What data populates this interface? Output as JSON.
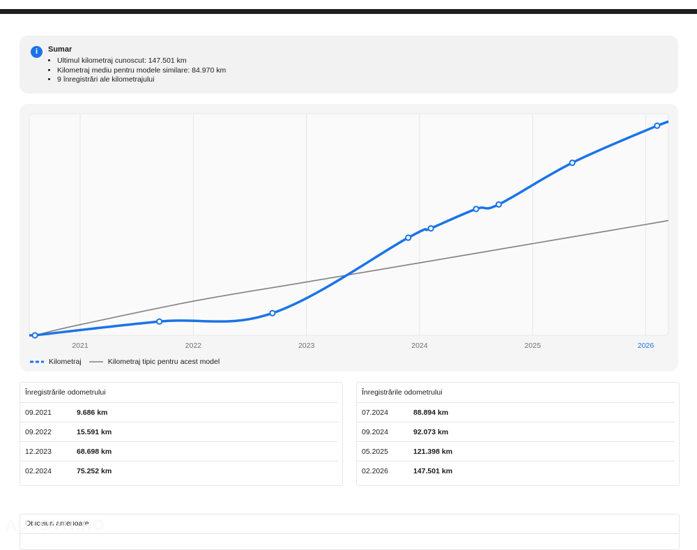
{
  "summary": {
    "icon": "info-icon",
    "title": "Sumar",
    "items": [
      "Ultimul kilometraj cunoscut: 147.501 km",
      "Kilometraj mediu pentru modele similare: 84.970 km",
      "9 înregistrări ale kilometrajului"
    ]
  },
  "chart_data": {
    "type": "line",
    "title": "",
    "xlabel": "",
    "ylabel": "",
    "x_ticks": [
      "2021",
      "2022",
      "2023",
      "2024",
      "2025",
      "2026"
    ],
    "highlighted_tick": "2026",
    "grid": "vertical",
    "legend_position": "bottom-left",
    "series": [
      {
        "name": "Kilometraj",
        "color": "#1a73e8",
        "style": "solid-with-markers",
        "points": [
          {
            "x": "2020.6",
            "y": 0
          },
          {
            "x": "2021.7",
            "y": 9686
          },
          {
            "x": "2022.7",
            "y": 15591
          },
          {
            "x": "2023.9",
            "y": 68698
          },
          {
            "x": "2024.1",
            "y": 75252
          },
          {
            "x": "2024.5",
            "y": 88894
          },
          {
            "x": "2024.7",
            "y": 92073
          },
          {
            "x": "2025.35",
            "y": 121398
          },
          {
            "x": "2026.1",
            "y": 147501
          }
        ]
      },
      {
        "name": "Kilometraj tipic pentru acest model",
        "color": "#808080",
        "style": "line",
        "points": [
          {
            "x": "2020.6",
            "y": 0
          },
          {
            "x": "2021.0",
            "y": 7500
          },
          {
            "x": "2022.0",
            "y": 24000
          },
          {
            "x": "2023.0",
            "y": 37500
          },
          {
            "x": "2024.0",
            "y": 51000
          },
          {
            "x": "2025.0",
            "y": 64500
          },
          {
            "x": "2026.0",
            "y": 78000
          },
          {
            "x": "2026.2",
            "y": 80800
          }
        ]
      }
    ],
    "xlim": [
      2020.55,
      2026.2
    ],
    "ylim": [
      0,
      156000
    ]
  },
  "records_title": "Înregistrările odometrului",
  "records_left": [
    {
      "date": "09.2021",
      "value": "9.686 km"
    },
    {
      "date": "09.2022",
      "value": "15.591 km"
    },
    {
      "date": "12.2023",
      "value": "68.698 km"
    },
    {
      "date": "02.2024",
      "value": "75.252 km"
    }
  ],
  "records_right": [
    {
      "date": "07.2024",
      "value": "88.894 km"
    },
    {
      "date": "09.2024",
      "value": "92.073 km"
    },
    {
      "date": "05.2025",
      "value": "121.398 km"
    },
    {
      "date": "02.2026",
      "value": "147.501 km"
    }
  ],
  "bottom": {
    "title": "Obiceiuri anterioare"
  },
  "watermark": "AUTOVIT.RO"
}
